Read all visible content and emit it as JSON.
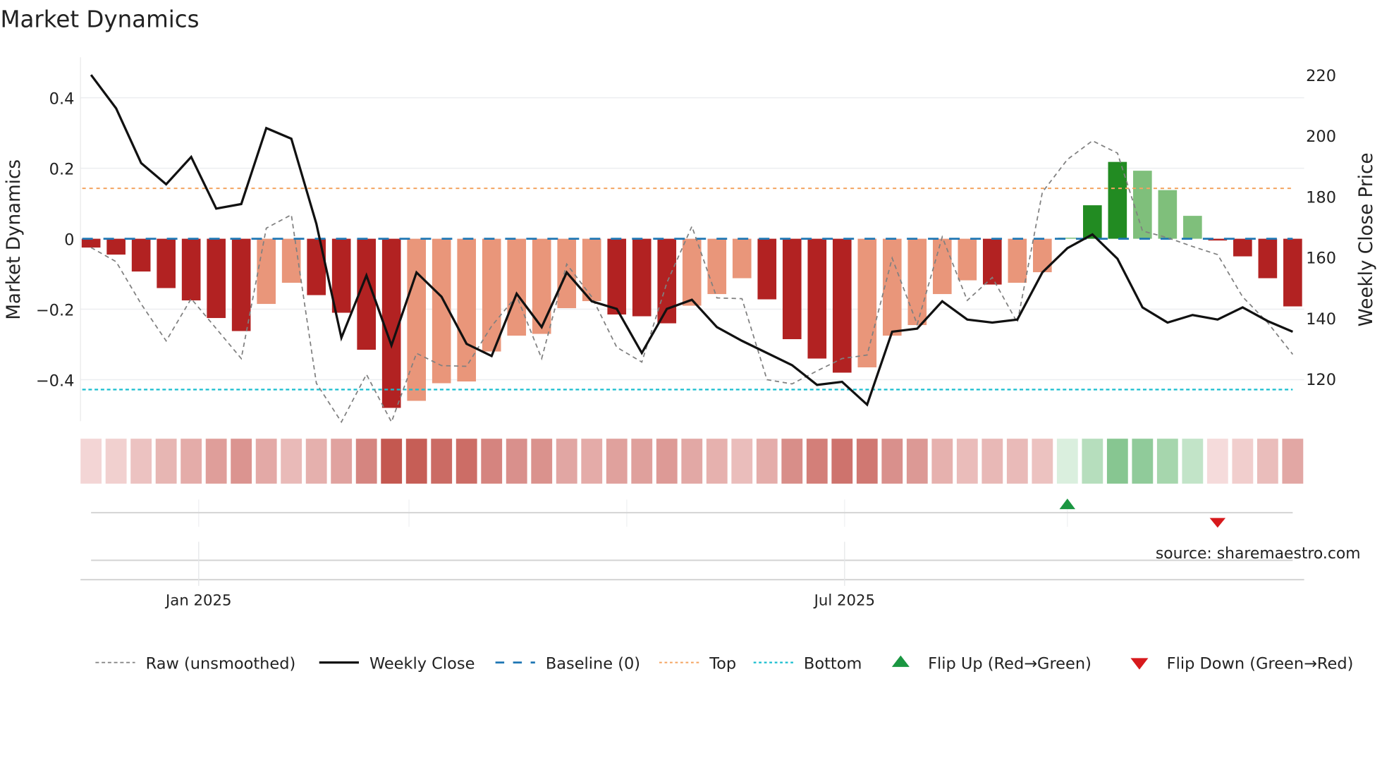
{
  "chart_data": {
    "type": "bar",
    "title": "Market Dynamics",
    "ylabel": "Market Dynamics",
    "y2label": "Weekly Close Price",
    "ylim": [
      -0.52,
      0.53
    ],
    "y2lim": [
      107,
      226
    ],
    "yticks": [
      {
        "v": 0.4,
        "label": "0.4"
      },
      {
        "v": 0.2,
        "label": "0.2"
      },
      {
        "v": 0,
        "label": "0"
      },
      {
        "v": -0.2,
        "label": "−0.2"
      },
      {
        "v": -0.4,
        "label": "−0.4"
      }
    ],
    "y2ticks": [
      {
        "v": 220,
        "label": "220"
      },
      {
        "v": 200,
        "label": "200"
      },
      {
        "v": 180,
        "label": "180"
      },
      {
        "v": 160,
        "label": "160"
      },
      {
        "v": 140,
        "label": "140"
      },
      {
        "v": 120,
        "label": "120"
      }
    ],
    "xticks": [
      {
        "index": 4.3,
        "label": "Jan 2025"
      },
      {
        "index": 30.1,
        "label": "Jul 2025"
      }
    ],
    "minor_xgrid": [
      4.3,
      12.7,
      21.4,
      30.1,
      39.0
    ],
    "top": 0.143,
    "bottom": -0.428,
    "baseline": 0,
    "values": [
      -0.025,
      -0.045,
      -0.093,
      -0.14,
      -0.175,
      -0.225,
      -0.262,
      -0.185,
      -0.125,
      -0.16,
      -0.21,
      -0.315,
      -0.48,
      -0.46,
      -0.41,
      -0.405,
      -0.32,
      -0.275,
      -0.27,
      -0.197,
      -0.177,
      -0.215,
      -0.22,
      -0.24,
      -0.19,
      -0.157,
      -0.112,
      -0.172,
      -0.285,
      -0.34,
      -0.38,
      -0.365,
      -0.275,
      -0.245,
      -0.157,
      -0.118,
      -0.13,
      -0.125,
      -0.095,
      0.003,
      0.095,
      0.218,
      0.193,
      0.138,
      0.065,
      -0.005,
      -0.05,
      -0.112,
      -0.192
    ],
    "strong": [
      1,
      1,
      1,
      1,
      1,
      1,
      1,
      0,
      0,
      1,
      1,
      1,
      1,
      0,
      0,
      0,
      0,
      0,
      0,
      0,
      0,
      1,
      1,
      1,
      0,
      0,
      0,
      1,
      1,
      1,
      1,
      0,
      0,
      0,
      0,
      0,
      1,
      0,
      0,
      0,
      1,
      1,
      0,
      0,
      0,
      1,
      1,
      1,
      1
    ],
    "raw": [
      -0.025,
      -0.065,
      -0.185,
      -0.29,
      -0.17,
      -0.255,
      -0.34,
      0.03,
      0.068,
      -0.41,
      -0.52,
      -0.385,
      -0.52,
      -0.325,
      -0.36,
      -0.362,
      -0.248,
      -0.162,
      -0.34,
      -0.072,
      -0.165,
      -0.308,
      -0.35,
      -0.125,
      0.035,
      -0.168,
      -0.17,
      -0.4,
      -0.412,
      -0.375,
      -0.34,
      -0.33,
      -0.055,
      -0.243,
      0.005,
      -0.175,
      -0.11,
      -0.238,
      0.132,
      0.225,
      0.278,
      0.243,
      0.022,
      0.003,
      -0.022,
      -0.045,
      -0.165,
      -0.238,
      -0.328
    ],
    "close": [
      220,
      209,
      191,
      184,
      193,
      176,
      177.5,
      202.5,
      199,
      171,
      133.5,
      154,
      131,
      155,
      147,
      131.5,
      127.5,
      148,
      137,
      155,
      145.5,
      143,
      128.5,
      143,
      146,
      137,
      132.5,
      128.5,
      124.5,
      118,
      119,
      111.5,
      135.5,
      136.5,
      145.5,
      139.5,
      138.5,
      139.5,
      155,
      163,
      167.5,
      159.5,
      143.5,
      138.5,
      141,
      139.5,
      143.5,
      139,
      135.5
    ],
    "flip_up": [
      39
    ],
    "flip_down": [
      45
    ],
    "colors": {
      "red_strong": "#b22222",
      "red_weak": "#e9967a",
      "green_strong": "#228b22",
      "green_weak": "#7fbf7b",
      "baseline": "#1f77b4",
      "top": "#f4a460",
      "bottom": "#17becf",
      "raw": "#808080",
      "close": "#111111",
      "flip_up": "#1a9641",
      "flip_down": "#d7191c"
    },
    "legend": [
      {
        "key": "raw",
        "label": "Raw (unsmoothed)"
      },
      {
        "key": "close",
        "label": "Weekly Close"
      },
      {
        "key": "baseline",
        "label": "Baseline (0)"
      },
      {
        "key": "top",
        "label": "Top"
      },
      {
        "key": "bottom",
        "label": "Bottom"
      },
      {
        "key": "flip_up",
        "label": "Flip Up (Red→Green)"
      },
      {
        "key": "flip_down",
        "label": "Flip Down (Green→Red)"
      }
    ],
    "legend_position": "bottom",
    "source": "source: sharemaestro.com"
  }
}
